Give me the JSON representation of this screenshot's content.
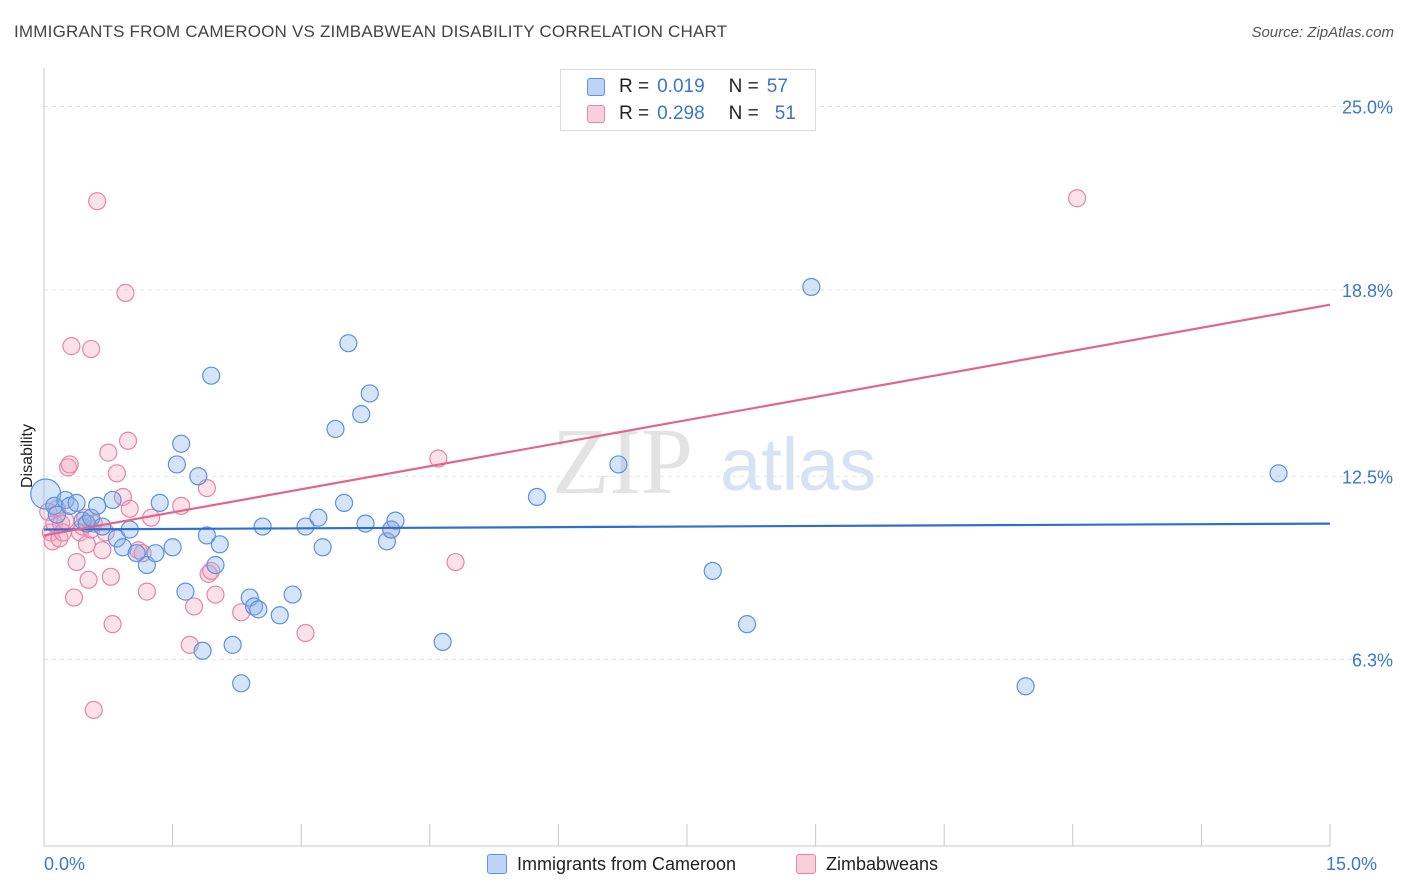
{
  "header": {
    "title": "IMMIGRANTS FROM CAMEROON VS ZIMBABWEAN DISABILITY CORRELATION CHART",
    "source": "Source: ZipAtlas.com"
  },
  "watermark": {
    "zip": "ZIP",
    "atlas": "atlas"
  },
  "legend": {
    "rows": [
      {
        "r_label": "R =",
        "r_value": "0.019",
        "n_label": "N =",
        "n_value": "57"
      },
      {
        "r_label": "R =",
        "r_value": "0.298",
        "n_label": "N =",
        "n_value": "51"
      }
    ]
  },
  "bottom_legend": {
    "series1": "Immigrants from Cameroon",
    "series2": "Zimbabweans"
  },
  "axes": {
    "x_min_label": "0.0%",
    "x_max_label": "15.0%",
    "y_label": "Disability"
  },
  "colors": {
    "blue": "#5b93dd",
    "blue_fill": "rgba(135,177,235,0.35)",
    "blue_line": "#2e6fd0",
    "pink": "#e884a6",
    "pink_fill": "rgba(244,168,192,0.35)",
    "pink_line": "#e0668f",
    "tick_text": "#3a78c9",
    "grid": "#e2e2e2"
  },
  "chart_data": {
    "type": "scatter",
    "title": "IMMIGRANTS FROM CAMEROON VS ZIMBABWEAN DISABILITY CORRELATION CHART",
    "xlabel": "",
    "ylabel": "Disability",
    "xlim": [
      0,
      15
    ],
    "ylim": [
      0,
      26.1
    ],
    "yticks": [
      6.3,
      12.5,
      18.8,
      25.0
    ],
    "ytick_labels": [
      "6.3%",
      "12.5%",
      "18.8%",
      "25.0%"
    ],
    "xtick_labels": [
      "0.0%",
      "15.0%"
    ],
    "series": [
      {
        "name": "Immigrants from Cameroon",
        "stats": {
          "R": 0.019,
          "N": 57
        },
        "trend": {
          "x": [
            0,
            15
          ],
          "y": [
            10.7,
            10.9
          ]
        },
        "points": [
          {
            "x": 0.02,
            "y": 11.9,
            "big": true
          },
          {
            "x": 0.12,
            "y": 11.5
          },
          {
            "x": 0.15,
            "y": 11.2
          },
          {
            "x": 0.25,
            "y": 11.7
          },
          {
            "x": 0.3,
            "y": 11.5
          },
          {
            "x": 0.38,
            "y": 11.6
          },
          {
            "x": 0.45,
            "y": 11.0
          },
          {
            "x": 0.5,
            "y": 10.9
          },
          {
            "x": 0.55,
            "y": 11.1
          },
          {
            "x": 0.62,
            "y": 11.5
          },
          {
            "x": 0.68,
            "y": 10.8
          },
          {
            "x": 0.8,
            "y": 11.7
          },
          {
            "x": 0.85,
            "y": 10.4
          },
          {
            "x": 0.92,
            "y": 10.1
          },
          {
            "x": 1.0,
            "y": 10.7
          },
          {
            "x": 1.08,
            "y": 9.9
          },
          {
            "x": 1.2,
            "y": 9.5
          },
          {
            "x": 1.3,
            "y": 9.9
          },
          {
            "x": 1.35,
            "y": 11.6
          },
          {
            "x": 1.5,
            "y": 10.1
          },
          {
            "x": 1.55,
            "y": 12.9
          },
          {
            "x": 1.6,
            "y": 13.6
          },
          {
            "x": 1.65,
            "y": 8.6
          },
          {
            "x": 1.8,
            "y": 12.5
          },
          {
            "x": 1.85,
            "y": 6.6
          },
          {
            "x": 1.9,
            "y": 10.5
          },
          {
            "x": 1.95,
            "y": 15.9
          },
          {
            "x": 2.0,
            "y": 9.5
          },
          {
            "x": 2.05,
            "y": 10.2
          },
          {
            "x": 2.2,
            "y": 6.8
          },
          {
            "x": 2.3,
            "y": 5.5
          },
          {
            "x": 2.4,
            "y": 8.4
          },
          {
            "x": 2.45,
            "y": 8.1
          },
          {
            "x": 2.5,
            "y": 8.0
          },
          {
            "x": 2.55,
            "y": 10.8
          },
          {
            "x": 2.75,
            "y": 7.8
          },
          {
            "x": 2.9,
            "y": 8.5
          },
          {
            "x": 3.05,
            "y": 10.8
          },
          {
            "x": 3.2,
            "y": 11.1
          },
          {
            "x": 3.25,
            "y": 10.1
          },
          {
            "x": 3.4,
            "y": 14.1
          },
          {
            "x": 3.5,
            "y": 11.6
          },
          {
            "x": 3.55,
            "y": 17.0
          },
          {
            "x": 3.7,
            "y": 14.6
          },
          {
            "x": 3.75,
            "y": 10.9
          },
          {
            "x": 3.8,
            "y": 15.3
          },
          {
            "x": 4.0,
            "y": 10.3
          },
          {
            "x": 4.05,
            "y": 10.7
          },
          {
            "x": 4.1,
            "y": 11.0
          },
          {
            "x": 4.65,
            "y": 6.9
          },
          {
            "x": 5.75,
            "y": 11.8
          },
          {
            "x": 6.7,
            "y": 12.9
          },
          {
            "x": 7.8,
            "y": 9.3
          },
          {
            "x": 8.2,
            "y": 7.5
          },
          {
            "x": 8.95,
            "y": 18.9
          },
          {
            "x": 11.45,
            "y": 5.4
          },
          {
            "x": 14.4,
            "y": 12.6
          }
        ]
      },
      {
        "name": "Zimbabweans",
        "stats": {
          "R": 0.298,
          "N": 51
        },
        "trend": {
          "x": [
            0,
            15
          ],
          "y": [
            10.5,
            18.3
          ]
        },
        "points": [
          {
            "x": 0.05,
            "y": 11.3
          },
          {
            "x": 0.08,
            "y": 10.6
          },
          {
            "x": 0.1,
            "y": 10.3
          },
          {
            "x": 0.12,
            "y": 10.9
          },
          {
            "x": 0.15,
            "y": 11.4
          },
          {
            "x": 0.18,
            "y": 10.4
          },
          {
            "x": 0.2,
            "y": 10.9
          },
          {
            "x": 0.22,
            "y": 10.6
          },
          {
            "x": 0.25,
            "y": 11.0
          },
          {
            "x": 0.28,
            "y": 12.8
          },
          {
            "x": 0.3,
            "y": 12.9
          },
          {
            "x": 0.32,
            "y": 16.9
          },
          {
            "x": 0.35,
            "y": 8.4
          },
          {
            "x": 0.38,
            "y": 9.6
          },
          {
            "x": 0.42,
            "y": 10.6
          },
          {
            "x": 0.45,
            "y": 10.8
          },
          {
            "x": 0.48,
            "y": 11.1
          },
          {
            "x": 0.5,
            "y": 10.2
          },
          {
            "x": 0.52,
            "y": 9.0
          },
          {
            "x": 0.55,
            "y": 10.7
          },
          {
            "x": 0.55,
            "y": 16.8
          },
          {
            "x": 0.58,
            "y": 10.9
          },
          {
            "x": 0.58,
            "y": 4.6
          },
          {
            "x": 0.62,
            "y": 21.8
          },
          {
            "x": 0.68,
            "y": 10.0
          },
          {
            "x": 0.72,
            "y": 10.6
          },
          {
            "x": 0.75,
            "y": 13.3
          },
          {
            "x": 0.78,
            "y": 9.1
          },
          {
            "x": 0.8,
            "y": 7.5
          },
          {
            "x": 0.85,
            "y": 12.6
          },
          {
            "x": 0.92,
            "y": 11.8
          },
          {
            "x": 0.95,
            "y": 18.7
          },
          {
            "x": 0.98,
            "y": 13.7
          },
          {
            "x": 1.0,
            "y": 11.4
          },
          {
            "x": 1.1,
            "y": 10.0
          },
          {
            "x": 1.15,
            "y": 9.9
          },
          {
            "x": 1.2,
            "y": 8.6
          },
          {
            "x": 1.25,
            "y": 11.1
          },
          {
            "x": 1.6,
            "y": 11.5
          },
          {
            "x": 1.7,
            "y": 6.8
          },
          {
            "x": 1.75,
            "y": 8.1
          },
          {
            "x": 1.9,
            "y": 12.1
          },
          {
            "x": 1.92,
            "y": 9.2
          },
          {
            "x": 1.95,
            "y": 9.3
          },
          {
            "x": 2.0,
            "y": 8.5
          },
          {
            "x": 2.3,
            "y": 7.9
          },
          {
            "x": 3.05,
            "y": 7.2
          },
          {
            "x": 4.05,
            "y": 10.7
          },
          {
            "x": 4.6,
            "y": 13.1
          },
          {
            "x": 4.8,
            "y": 9.6
          },
          {
            "x": 12.05,
            "y": 21.9
          }
        ]
      }
    ]
  }
}
